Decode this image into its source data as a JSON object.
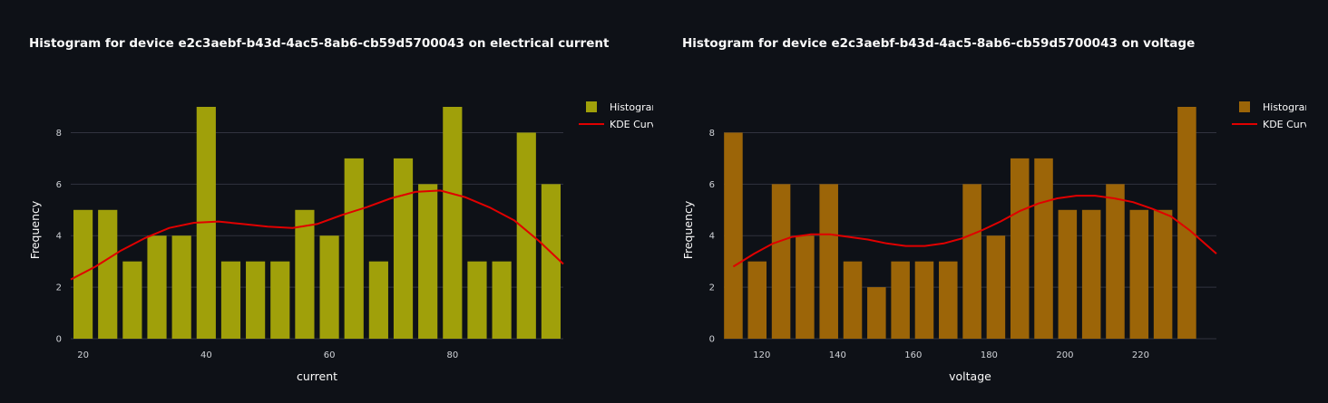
{
  "chart_data": [
    {
      "type": "bar",
      "title": "Histogram for device e2c3aebf-b43d-4ac5-8ab6-cb59d5700043 on electrical current",
      "xlabel": "current",
      "ylabel": "Frequency",
      "bar_color": "#a0a00a",
      "curve_color": "#e00000",
      "xlim": [
        18,
        98
      ],
      "ylim": [
        0,
        9
      ],
      "xticks": [
        20,
        40,
        60,
        80
      ],
      "yticks": [
        0,
        2,
        4,
        6,
        8
      ],
      "bin_width": 4,
      "bins": [
        20,
        24,
        28,
        32,
        36,
        40,
        44,
        48,
        52,
        56,
        60,
        64,
        68,
        72,
        76,
        80,
        84,
        88,
        92,
        96
      ],
      "values": [
        5,
        5,
        3,
        4,
        4,
        9,
        3,
        3,
        3,
        5,
        4,
        7,
        3,
        7,
        6,
        9,
        3,
        3,
        8,
        6
      ],
      "series": [
        {
          "name": "Histogram",
          "kind": "bar"
        },
        {
          "name": "KDE Curve",
          "kind": "line",
          "x": [
            18,
            22,
            26,
            30,
            34,
            38,
            42,
            46,
            50,
            54,
            58,
            62,
            66,
            70,
            74,
            78,
            82,
            86,
            90,
            94,
            98
          ],
          "y": [
            2.3,
            2.8,
            3.4,
            3.9,
            4.3,
            4.5,
            4.55,
            4.45,
            4.35,
            4.3,
            4.45,
            4.8,
            5.1,
            5.45,
            5.7,
            5.75,
            5.5,
            5.1,
            4.6,
            3.8,
            2.9
          ]
        }
      ],
      "legend": "top-right",
      "grid": true
    },
    {
      "type": "bar",
      "title": "Histogram for device e2c3aebf-b43d-4ac5-8ab6-cb59d5700043 on voltage",
      "xlabel": "voltage",
      "ylabel": "Frequency",
      "bar_color": "#9c6508",
      "curve_color": "#e00000",
      "xlim": [
        110,
        240
      ],
      "ylim": [
        0,
        9
      ],
      "xticks": [
        120,
        140,
        160,
        180,
        200,
        220
      ],
      "yticks": [
        0,
        2,
        4,
        6,
        8
      ],
      "bin_width": 6.3,
      "bins": [
        112.5,
        118.8,
        125.1,
        131.4,
        137.7,
        144,
        150.3,
        156.6,
        162.9,
        169.2,
        175.5,
        181.8,
        188.1,
        194.4,
        200.7,
        207,
        213.3,
        219.6,
        225.9,
        232.2
      ],
      "values": [
        8,
        3,
        6,
        4,
        6,
        3,
        2,
        3,
        3,
        3,
        6,
        4,
        7,
        7,
        5,
        5,
        6,
        5,
        5,
        9
      ],
      "series": [
        {
          "name": "Histogram",
          "kind": "bar"
        },
        {
          "name": "KDE Curve",
          "kind": "line",
          "x": [
            112.5,
            118,
            123,
            128,
            133,
            138,
            143,
            148,
            153,
            158,
            163,
            168,
            173,
            178,
            183,
            188,
            193,
            198,
            203,
            208,
            213,
            218,
            223,
            228,
            233,
            240
          ],
          "y": [
            2.8,
            3.3,
            3.7,
            3.95,
            4.05,
            4.05,
            3.95,
            3.85,
            3.7,
            3.6,
            3.6,
            3.7,
            3.9,
            4.2,
            4.55,
            4.95,
            5.25,
            5.45,
            5.55,
            5.55,
            5.45,
            5.3,
            5.05,
            4.75,
            4.2,
            3.3
          ]
        }
      ],
      "legend": "top-right",
      "grid": true
    }
  ]
}
